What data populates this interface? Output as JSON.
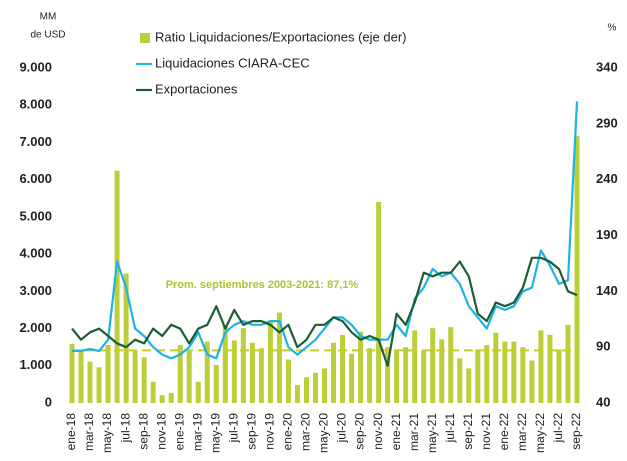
{
  "chart_data": {
    "type": "combo",
    "y_label": [
      "MM",
      "de USD"
    ],
    "y2_label": "%",
    "categories": [
      "ene-18",
      null,
      "mar-18",
      null,
      "may-18",
      null,
      "jul-18",
      null,
      "sep-18",
      null,
      "nov-18",
      null,
      "ene-19",
      null,
      "mar-19",
      null,
      "may-19",
      null,
      "jul-19",
      null,
      "sep-19",
      null,
      "nov-19",
      null,
      "ene-20",
      null,
      "mar-20",
      null,
      "may-20",
      null,
      "jul-20",
      null,
      "sep-20",
      null,
      "nov-20",
      null,
      "ene-21",
      null,
      "mar-21",
      null,
      "may-21",
      null,
      "jul-21",
      null,
      "sep-21",
      null,
      "nov-21",
      null,
      "ene-22",
      null,
      "mar-22",
      null,
      "may-22",
      null,
      "jul-22",
      null,
      "sep-22"
    ],
    "series": [
      {
        "name": "Ratio Liquidaciones/Exportaciones (eje der)",
        "kind": "bar",
        "axis": "y2",
        "color": "#bccf3a",
        "values": [
          93,
          88,
          77,
          72,
          92,
          248,
          156,
          87,
          81,
          59,
          47,
          49,
          92,
          87,
          59,
          95,
          74,
          110,
          96,
          107,
          94,
          89,
          114,
          121,
          79,
          56,
          63,
          67,
          71,
          94,
          101,
          84,
          104,
          89,
          220,
          90,
          87,
          90,
          105,
          87,
          107,
          97,
          108,
          80,
          71,
          88,
          92,
          103,
          95,
          95,
          90,
          78,
          105,
          101,
          88,
          110,
          279
        ]
      },
      {
        "name": "Liquidaciones CIARA-CEC",
        "kind": "line",
        "color": "#1eb2e8",
        "values": [
          1400,
          1400,
          1450,
          1400,
          1700,
          3800,
          3100,
          2000,
          1800,
          1500,
          1300,
          1200,
          1300,
          1500,
          1900,
          1300,
          1200,
          1900,
          2100,
          2200,
          2100,
          2100,
          2200,
          2200,
          1500,
          1300,
          1500,
          1700,
          2000,
          2300,
          2300,
          2100,
          1800,
          1700,
          1700,
          1700,
          2100,
          1800,
          2800,
          3100,
          3600,
          3400,
          3500,
          3200,
          2600,
          2300,
          2000,
          2600,
          2500,
          2600,
          3000,
          3100,
          4100,
          3700,
          3200,
          3300,
          8100
        ]
      },
      {
        "name": "Exportaciones",
        "kind": "line",
        "color": "#1b5e33",
        "values": [
          2000,
          1700,
          1900,
          2000,
          1800,
          1600,
          1500,
          1700,
          1600,
          2000,
          1800,
          2100,
          2000,
          1600,
          2000,
          2100,
          2600,
          2000,
          2500,
          2100,
          2200,
          2200,
          2100,
          1900,
          2100,
          1500,
          1700,
          2100,
          2100,
          2300,
          2200,
          1900,
          1700,
          1800,
          1700,
          1000,
          2400,
          2100,
          2700,
          3500,
          3400,
          3500,
          3500,
          3800,
          3400,
          2400,
          2200,
          2700,
          2600,
          2700,
          3100,
          3900,
          3900,
          3800,
          3600,
          3000,
          2900
        ]
      }
    ],
    "average": {
      "value": 87.1,
      "axis": "y2",
      "color": "#c5cc2c",
      "label": "Prom. septiembres 2003-2021: 87,1%"
    },
    "ylim": [
      0,
      9000
    ],
    "yticks": [
      0,
      {
        "value": 1000,
        "label": "1.000"
      },
      {
        "value": 2000,
        "label": "2.000"
      },
      {
        "value": 3000,
        "label": "3.000"
      },
      {
        "value": 4000,
        "label": "4.000"
      },
      {
        "value": 5000,
        "label": "5.000"
      },
      {
        "value": 6000,
        "label": "6.000"
      },
      {
        "value": 7000,
        "label": "7.000"
      },
      {
        "value": 8000,
        "label": "8.000"
      },
      {
        "value": 9000,
        "label": "9.000"
      }
    ],
    "y2lim": [
      40,
      340
    ],
    "y2ticks": [
      40,
      90,
      140,
      190,
      240,
      290,
      340
    ],
    "grid": false
  }
}
